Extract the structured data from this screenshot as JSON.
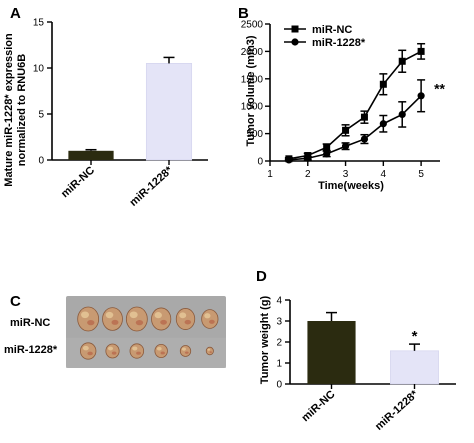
{
  "panels": {
    "a": "A",
    "b": "B",
    "c": "C",
    "d": "D"
  },
  "chart_data": [
    {
      "panel": "A",
      "type": "bar",
      "categories": [
        "miR-NC",
        "miR-1228*"
      ],
      "values": [
        1.0,
        10.5
      ],
      "errors": [
        0.12,
        0.65
      ],
      "ylabel": "Mature miR-1228* expression normalized to RNU6B",
      "ylabel_lines": [
        "Mature miR-1228* expression",
        "normalized to RNU6B"
      ],
      "ylim": [
        0,
        15
      ],
      "yticks": [
        0,
        5,
        10,
        15
      ],
      "colors": [
        "#2b2b10",
        "#e4e4f7"
      ],
      "grid": false
    },
    {
      "panel": "B",
      "type": "line",
      "xlabel": "Time(weeks)",
      "ylabel": "Tumor volume (mm3)",
      "xlim": [
        1,
        5.5
      ],
      "xticks": [
        1,
        2,
        3,
        4,
        5
      ],
      "ylim": [
        0,
        2500
      ],
      "yticks": [
        0,
        500,
        1000,
        1500,
        2000,
        2500
      ],
      "legend_position": "top-left",
      "grid": false,
      "x": [
        1.5,
        2,
        2.5,
        3,
        3.5,
        4,
        4.5,
        5
      ],
      "series": [
        {
          "name": "miR-NC",
          "marker": "square",
          "values": [
            40,
            100,
            250,
            560,
            800,
            1400,
            1820,
            2000
          ],
          "errors": [
            20,
            40,
            60,
            100,
            110,
            190,
            200,
            140
          ]
        },
        {
          "name": "miR-1228*",
          "marker": "circle",
          "values": [
            20,
            50,
            130,
            270,
            400,
            680,
            850,
            1190
          ],
          "errors": [
            15,
            30,
            50,
            60,
            80,
            150,
            230,
            290
          ]
        }
      ],
      "annotation": "**"
    },
    {
      "panel": "D",
      "type": "bar",
      "categories": [
        "miR-NC",
        "miR-1228*"
      ],
      "values": [
        3.0,
        1.58
      ],
      "errors": [
        0.4,
        0.32
      ],
      "ylabel": "Tumor weight (g)",
      "ylim": [
        0,
        4
      ],
      "yticks": [
        0,
        1,
        2,
        3,
        4
      ],
      "colors": [
        "#2b2b10",
        "#e4e4f7"
      ],
      "annotation": "*",
      "grid": false
    }
  ],
  "photo": {
    "labels": [
      "miR-NC",
      "miR-1228*"
    ],
    "background": "#a9a9a9",
    "tumor_color": "#c89a72",
    "row1_sizes": [
      1.0,
      0.95,
      1.0,
      0.92,
      0.88,
      0.78
    ],
    "row2_sizes": [
      0.82,
      0.7,
      0.72,
      0.66,
      0.55,
      0.38
    ]
  }
}
